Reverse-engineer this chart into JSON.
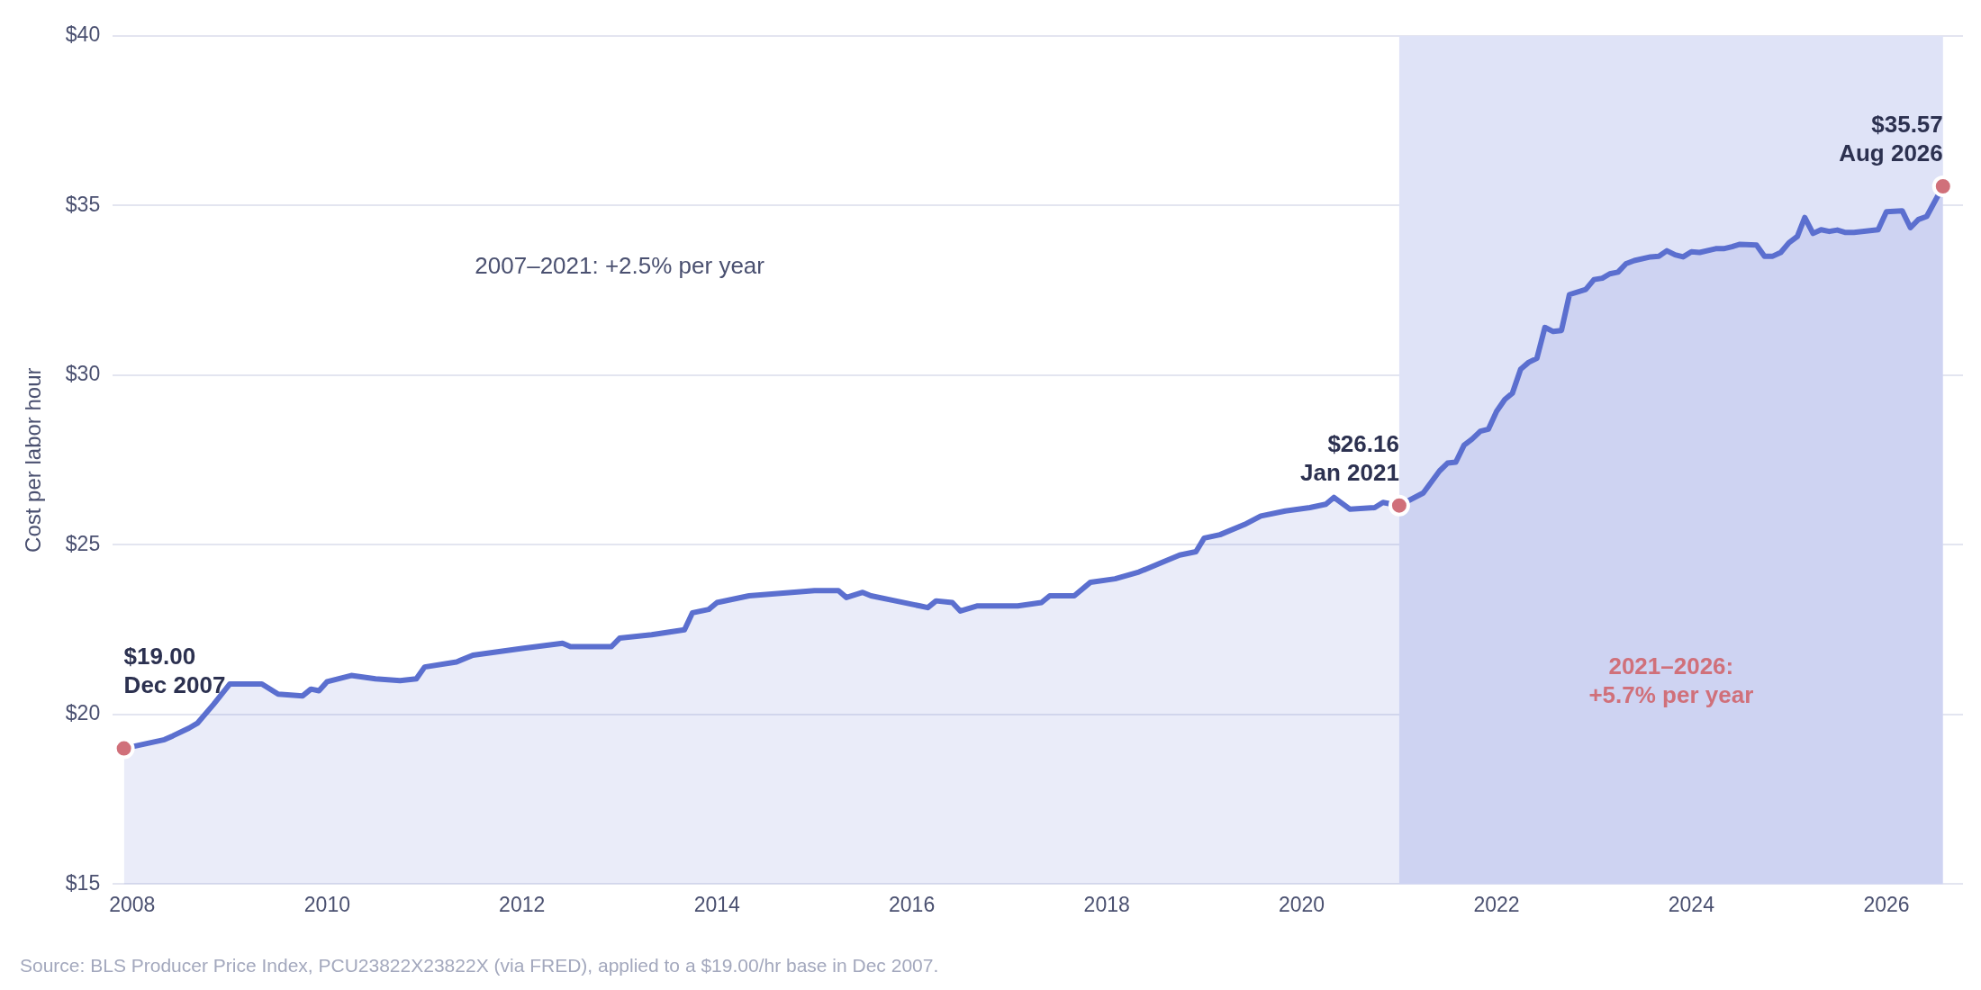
{
  "chart_data": {
    "type": "area",
    "ylabel": "Cost per labor hour",
    "xlim": [
      "2007-10-20",
      "2026-10-15"
    ],
    "ylim": [
      15,
      40
    ],
    "xticks": [
      "2008",
      "2010",
      "2012",
      "2014",
      "2016",
      "2018",
      "2020",
      "2022",
      "2024",
      "2026"
    ],
    "yticks": [
      {
        "value": 15,
        "label": "$15"
      },
      {
        "value": 20,
        "label": "$20"
      },
      {
        "value": 25,
        "label": "$25"
      },
      {
        "value": 30,
        "label": "$30"
      },
      {
        "value": 35,
        "label": "$35"
      },
      {
        "value": 40,
        "label": "$40"
      }
    ],
    "grid": "y",
    "legend": false,
    "bands": [
      {
        "axis": "x",
        "from": "2021-01",
        "to": "2026-08",
        "color": "#dfe3f7"
      }
    ],
    "series": [
      {
        "color": "#5b6fcf",
        "marker": "none",
        "x": [
          "2007-12",
          "2008-05",
          "2008-06",
          "2008-08",
          "2008-09",
          "2008-11",
          "2009-01",
          "2009-05",
          "2009-07",
          "2009-10",
          "2009-11",
          "2009-12",
          "2010-01",
          "2010-04",
          "2010-07",
          "2010-10",
          "2010-12",
          "2011-01",
          "2011-05",
          "2011-07",
          "2012-01",
          "2012-06",
          "2012-07",
          "2012-12",
          "2013-01",
          "2013-05",
          "2013-09",
          "2013-10",
          "2013-12",
          "2014-01",
          "2014-05",
          "2015-01",
          "2015-04",
          "2015-05",
          "2015-07",
          "2015-08",
          "2015-11",
          "2016-02",
          "2016-03",
          "2016-04",
          "2016-06",
          "2016-07",
          "2016-09",
          "2017-02",
          "2017-05",
          "2017-06",
          "2017-09",
          "2017-11",
          "2018-02",
          "2018-05",
          "2018-08",
          "2018-10",
          "2018-12",
          "2019-01",
          "2019-03",
          "2019-06",
          "2019-08",
          "2019-11",
          "2020-02",
          "2020-04",
          "2020-05",
          "2020-07",
          "2020-10",
          "2020-11",
          "2021-01",
          "2021-04",
          "2021-06",
          "2021-07",
          "2021-08",
          "2021-09",
          "2021-10",
          "2021-11",
          "2021-12",
          "2022-01",
          "2022-02",
          "2022-03",
          "2022-04",
          "2022-05",
          "2022-06",
          "2022-07",
          "2022-08",
          "2022-09",
          "2022-10",
          "2022-12",
          "2023-01",
          "2023-02",
          "2023-03",
          "2023-04",
          "2023-05",
          "2023-06",
          "2023-08",
          "2023-09",
          "2023-10",
          "2023-11",
          "2023-12",
          "2024-01",
          "2024-02",
          "2024-04",
          "2024-05",
          "2024-06",
          "2024-07",
          "2024-09",
          "2024-10",
          "2024-11",
          "2024-12",
          "2025-01",
          "2025-02",
          "2025-03",
          "2025-04",
          "2025-05",
          "2025-06",
          "2025-07",
          "2025-08",
          "2025-09",
          "2025-12",
          "2026-01",
          "2026-03",
          "2026-04",
          "2026-05",
          "2026-06",
          "2026-08"
        ],
        "values": [
          19.0,
          19.26,
          19.37,
          19.6,
          19.74,
          20.3,
          20.9,
          20.9,
          20.6,
          20.55,
          20.75,
          20.7,
          20.97,
          21.15,
          21.05,
          21.0,
          21.05,
          21.4,
          21.55,
          21.75,
          21.95,
          22.1,
          22.0,
          22.0,
          22.25,
          22.35,
          22.5,
          23.0,
          23.1,
          23.3,
          23.5,
          23.65,
          23.65,
          23.45,
          23.6,
          23.5,
          23.35,
          23.2,
          23.15,
          23.35,
          23.3,
          23.05,
          23.2,
          23.2,
          23.3,
          23.5,
          23.5,
          23.9,
          24.0,
          24.2,
          24.5,
          24.7,
          24.8,
          25.2,
          25.3,
          25.6,
          25.85,
          26.0,
          26.1,
          26.2,
          26.4,
          26.05,
          26.1,
          26.25,
          26.16,
          26.53,
          27.18,
          27.41,
          27.44,
          27.94,
          28.12,
          28.35,
          28.41,
          28.94,
          29.29,
          29.47,
          30.18,
          30.38,
          30.5,
          31.41,
          31.29,
          31.32,
          32.38,
          32.53,
          32.82,
          32.86,
          32.99,
          33.04,
          33.29,
          33.38,
          33.49,
          33.51,
          33.67,
          33.55,
          33.49,
          33.64,
          33.62,
          33.73,
          33.73,
          33.79,
          33.86,
          33.84,
          33.51,
          33.51,
          33.62,
          33.91,
          34.09,
          34.65,
          34.18,
          34.29,
          34.24,
          34.28,
          34.21,
          34.21,
          34.29,
          34.82,
          34.85,
          34.35,
          34.59,
          34.68,
          35.57
        ]
      },
      {
        "type": "scatter",
        "color": "#d0707a",
        "marker": "circle",
        "x": [
          "2007-12",
          "2021-01",
          "2026-08"
        ],
        "values": [
          19.0,
          26.16,
          35.57
        ]
      }
    ],
    "annotations": [
      {
        "text": "$19.00\nDec 2007",
        "x": "2007-12",
        "y": 19.0
      },
      {
        "text": "$26.16\nJan 2021",
        "x": "2021-01",
        "y": 26.16
      },
      {
        "text": "$35.57\nAug 2026",
        "x": "2026-08",
        "y": 35.57
      },
      "2007–2021: +2.5% per year",
      "2021–2026:\n+5.7% per year",
      "Source: BLS Producer Price Index, PCU23822X23822X (via FRED), applied to a $19.00/hr base in Dec 2007."
    ]
  }
}
